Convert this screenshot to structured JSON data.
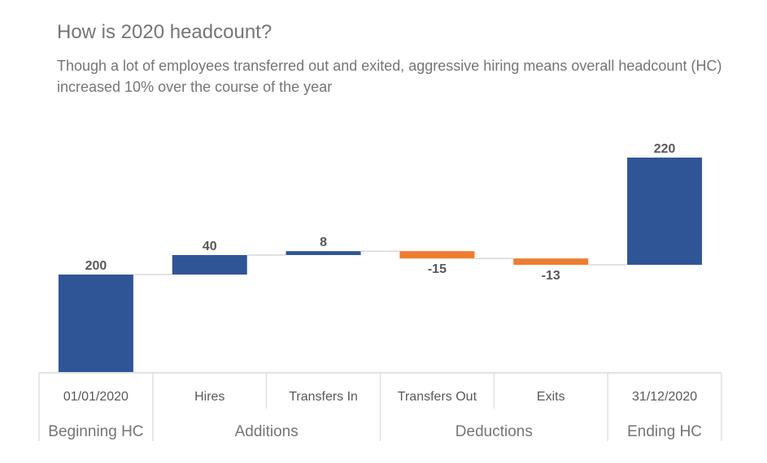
{
  "title": "How is 2020 headcount?",
  "subtitle": "Though a lot of employees transferred out and exited, aggressive hiring means overall headcount (HC) increased 10% over the course of the year",
  "chart_data": {
    "type": "waterfall",
    "categories": [
      "01/01/2020",
      "Hires",
      "Transfers In",
      "Transfers Out",
      "Exits",
      "31/12/2020"
    ],
    "values": [
      200,
      40,
      8,
      -15,
      -13,
      220
    ],
    "labels": [
      "200",
      "40",
      "8",
      "-15",
      "-13",
      "220"
    ],
    "kinds": [
      "total",
      "increase",
      "increase",
      "decrease",
      "decrease",
      "total"
    ],
    "groups": [
      {
        "label": "Beginning HC",
        "span": 1
      },
      {
        "label": "Additions",
        "span": 2
      },
      {
        "label": "Deductions",
        "span": 2
      },
      {
        "label": "Ending HC",
        "span": 1
      }
    ],
    "ylim": [
      0,
      440
    ],
    "grid": false,
    "colors": {
      "increase": "#2F5597",
      "total": "#2F5597",
      "decrease": "#ED7D31",
      "connector": "#D9D9D9"
    }
  }
}
